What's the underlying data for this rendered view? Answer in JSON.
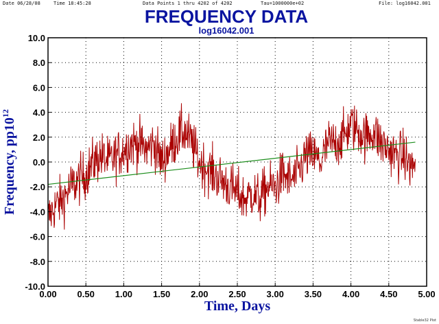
{
  "header": {
    "date": "Date  06/28/08",
    "time": "Time  18:45:28",
    "data_points": "Data Points 1 thru 4202  of  4202",
    "tau": "Tau=1000000e+02",
    "file": "File: log16042.001",
    "credit": "Stable32 Plot"
  },
  "colors": {
    "title": "#0a14a0",
    "series_main": "#aa0000",
    "series_fit": "#1a8c1a",
    "grid": "#000000"
  },
  "chart_data": {
    "type": "line",
    "title": "FREQUENCY DATA",
    "subtitle": "log16042.001",
    "xlabel": "Time, Days",
    "ylabel_main": "Frequency, pp10",
    "ylabel_exp": "12",
    "xlim": [
      0,
      5
    ],
    "ylim": [
      -10,
      10
    ],
    "xticks": [
      "0.00",
      "0.50",
      "1.00",
      "1.50",
      "2.00",
      "2.50",
      "3.00",
      "3.50",
      "4.00",
      "4.50",
      "5.00"
    ],
    "yticks": [
      "10.0",
      "8.0",
      "6.0",
      "4.0",
      "2.0",
      "0.0",
      "-2.0",
      "-4.0",
      "-6.0",
      "-8.0",
      "-10.0"
    ],
    "grid": true,
    "n_points": 4202,
    "series": [
      {
        "x": [
          0.0,
          0.1,
          0.2,
          0.3,
          0.4,
          0.5,
          0.6,
          0.7,
          0.8,
          0.9,
          1.0,
          1.1,
          1.2,
          1.3,
          1.4,
          1.5,
          1.6,
          1.7,
          1.8,
          1.9,
          2.0,
          2.1,
          2.2,
          2.3,
          2.4,
          2.5,
          2.6,
          2.7,
          2.8,
          2.9,
          3.0,
          3.1,
          3.2,
          3.3,
          3.4,
          3.5,
          3.6,
          3.7,
          3.8,
          3.9,
          4.0,
          4.1,
          4.2,
          4.3,
          4.4,
          4.5,
          4.6,
          4.7,
          4.8,
          4.85
        ],
        "values": [
          -4.5,
          -3.5,
          -3.0,
          -2.0,
          -1.5,
          -1.0,
          0.0,
          0.5,
          0.0,
          0.5,
          1.0,
          1.5,
          1.5,
          1.0,
          1.5,
          0.0,
          1.0,
          2.0,
          2.5,
          1.5,
          0.0,
          -0.5,
          -1.0,
          -1.5,
          -2.0,
          -2.5,
          -3.0,
          -2.5,
          -3.0,
          -2.0,
          -2.0,
          -1.0,
          -1.5,
          -1.0,
          0.5,
          0.5,
          0.0,
          1.5,
          1.5,
          2.0,
          3.0,
          2.5,
          2.0,
          2.5,
          1.5,
          1.0,
          0.5,
          0.5,
          -0.5,
          0.0
        ]
      },
      {
        "x": [
          0.0,
          4.85
        ],
        "values": [
          -1.8,
          1.6
        ]
      }
    ]
  }
}
